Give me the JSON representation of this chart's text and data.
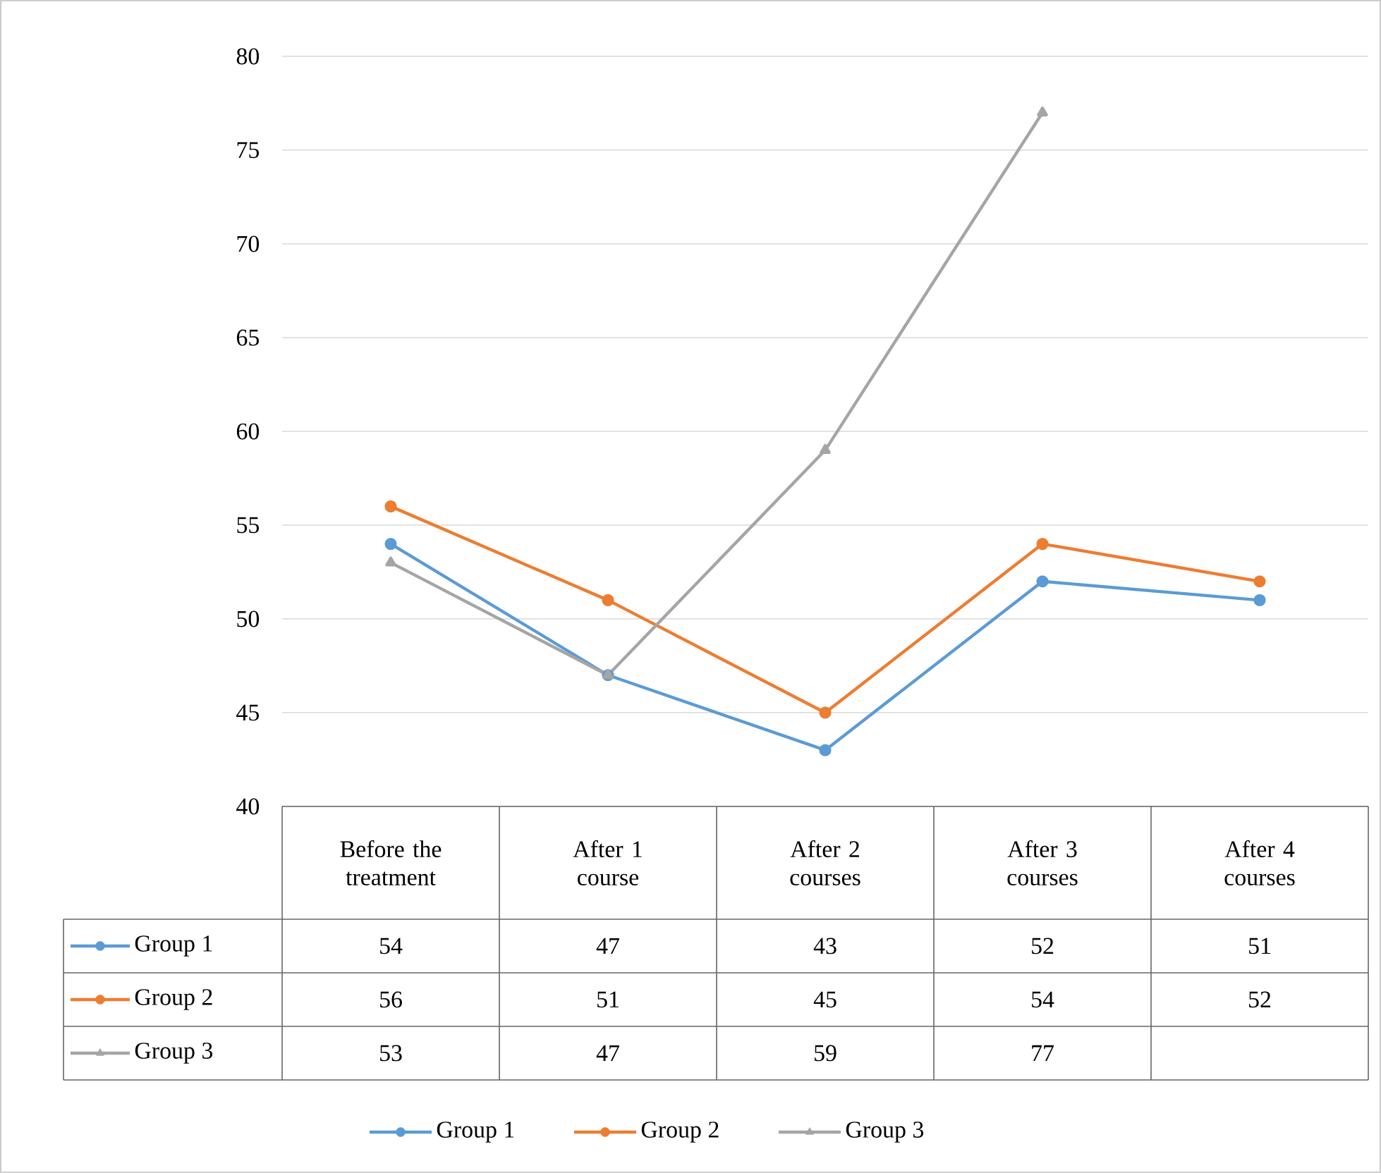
{
  "chart_data": {
    "type": "line",
    "categories": [
      "Before the treatment",
      "After 1 course",
      "After 2 courses",
      "After 3 courses",
      "After 4 courses"
    ],
    "series": [
      {
        "name": "Group 1",
        "color": "#5b9bd5",
        "marker": "circle",
        "values": [
          54,
          47,
          43,
          52,
          51
        ]
      },
      {
        "name": "Group 2",
        "color": "#ed7d31",
        "marker": "circle",
        "values": [
          56,
          51,
          45,
          54,
          52
        ]
      },
      {
        "name": "Group 3",
        "color": "#a5a5a5",
        "marker": "triangle",
        "values": [
          53,
          47,
          59,
          77,
          null
        ]
      }
    ],
    "ylim": [
      40,
      80
    ],
    "yticks": [
      40,
      45,
      50,
      55,
      60,
      65,
      70,
      75,
      80
    ],
    "grid": "y",
    "legend": "bottom",
    "data_labels": true,
    "line_style": "solid"
  }
}
